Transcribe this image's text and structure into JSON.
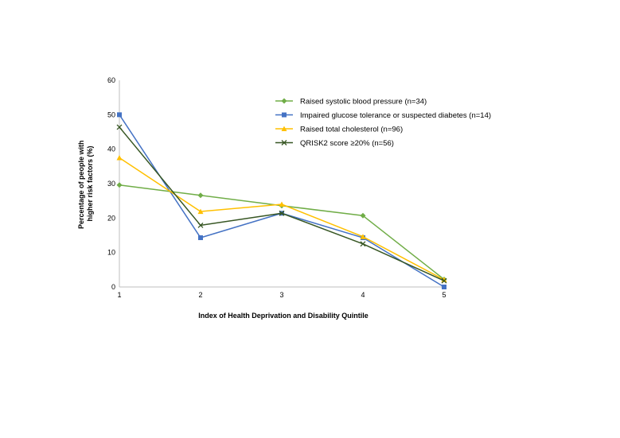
{
  "chart_data": {
    "type": "line",
    "title": "",
    "xlabel": "Index of Health Deprivation and Disability Quintile",
    "ylabel_lines": [
      "Percentage of people with",
      "higher risk factors (%)"
    ],
    "x": [
      1,
      2,
      3,
      4,
      5
    ],
    "x_tick_labels": [
      "1",
      "2",
      "3",
      "4",
      "5"
    ],
    "ylim": [
      0,
      60
    ],
    "y_ticks": [
      0,
      10,
      20,
      30,
      40,
      50,
      60
    ],
    "grid": false,
    "legend_position": "top-right",
    "series": [
      {
        "name": "Raised systolic blood pressure (n=34)",
        "color": "#70ad47",
        "marker": "diamond",
        "values": [
          29.6,
          26.6,
          23.6,
          20.7,
          2.2
        ]
      },
      {
        "name": "Impaired glucose tolerance or suspected diabetes (n=14)",
        "color": "#4472c4",
        "marker": "square",
        "values": [
          50.0,
          14.3,
          21.4,
          14.3,
          0.0
        ]
      },
      {
        "name": "Raised total cholesterol (n=96)",
        "color": "#ffc000",
        "marker": "triangle",
        "values": [
          37.5,
          21.9,
          24.0,
          14.6,
          2.1
        ]
      },
      {
        "name": "QRISK2 score ≥20% (n=56)",
        "color": "#375623",
        "marker": "x",
        "values": [
          46.4,
          17.9,
          21.4,
          12.5,
          1.8
        ]
      }
    ]
  }
}
